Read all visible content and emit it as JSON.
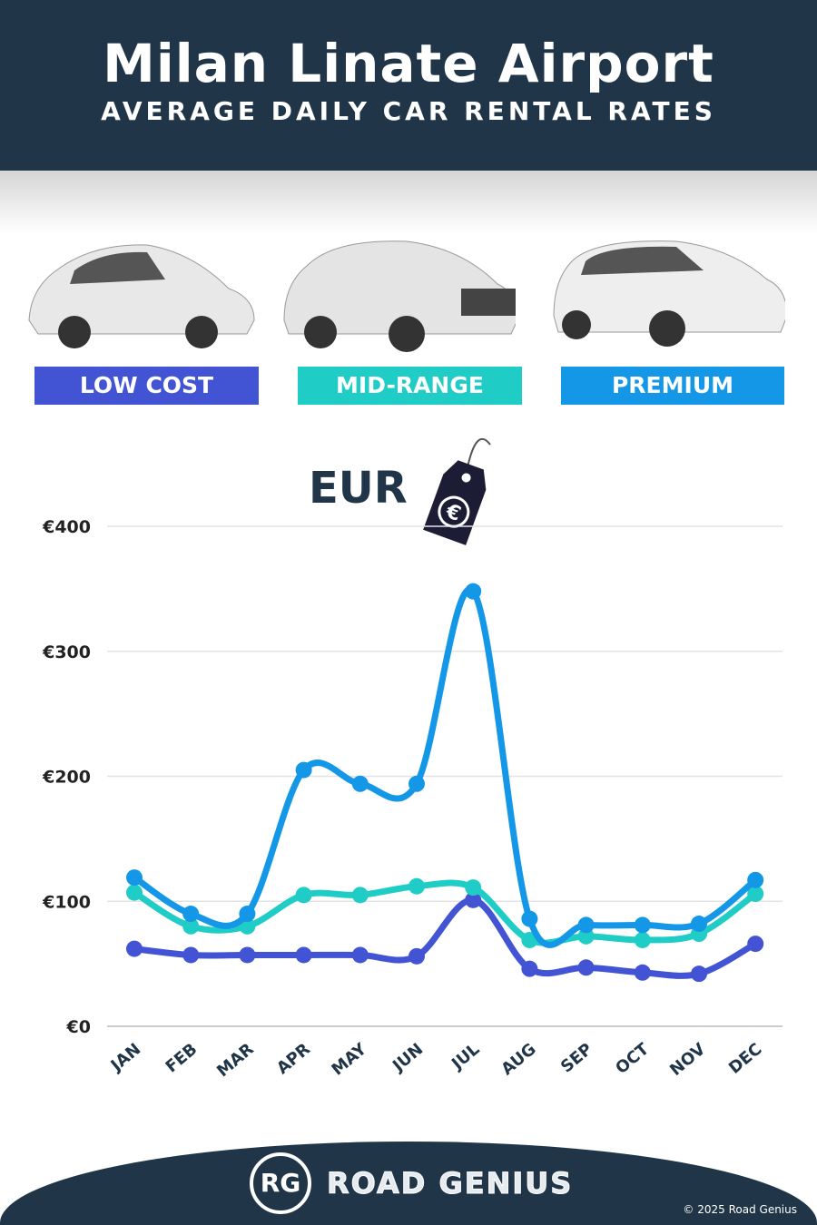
{
  "header": {
    "title": "Milan Linate Airport",
    "subtitle": "AVERAGE DAILY CAR RENTAL RATES"
  },
  "currency_label": "EUR",
  "currency_icon": "euro-price-tag-icon",
  "footer": {
    "logo": "RG",
    "brand": "ROAD GENIUS",
    "copyright": "© 2025 Road Genius"
  },
  "chart_data": {
    "type": "line",
    "categories": [
      "JAN",
      "FEB",
      "MAR",
      "APR",
      "MAY",
      "JUN",
      "JUL",
      "AUG",
      "SEP",
      "OCT",
      "NOV",
      "DEC"
    ],
    "yticks": [
      "€0",
      "€100",
      "€200",
      "€300",
      "€400"
    ],
    "ylim": [
      0,
      400
    ],
    "grid": true,
    "legend": "top",
    "series": [
      {
        "name": "LOW COST",
        "color": "#4254d4",
        "values": [
          62,
          57,
          57,
          57,
          57,
          56,
          101,
          46,
          47,
          43,
          42,
          66
        ]
      },
      {
        "name": "MID-RANGE",
        "color": "#20cdc6",
        "values": [
          107,
          80,
          80,
          105,
          105,
          112,
          111,
          69,
          72,
          69,
          74,
          106
        ]
      },
      {
        "name": "PREMIUM",
        "color": "#1597e8",
        "values": [
          119,
          90,
          90,
          205,
          194,
          194,
          348,
          86,
          81,
          81,
          82,
          117
        ]
      }
    ]
  }
}
